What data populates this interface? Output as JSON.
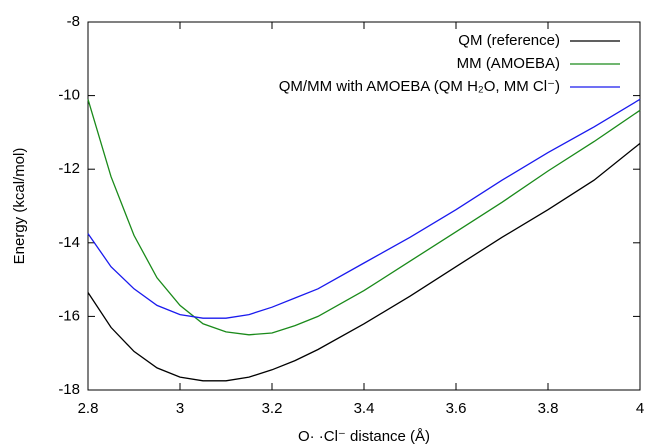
{
  "chart_data": {
    "type": "line",
    "xlabel": "O· ·Cl⁻ distance (Å)",
    "ylabel": "Energy (kcal/mol)",
    "x": [
      2.8,
      2.85,
      2.9,
      2.95,
      3.0,
      3.05,
      3.1,
      3.15,
      3.2,
      3.25,
      3.3,
      3.4,
      3.5,
      3.6,
      3.7,
      3.8,
      3.9,
      4.0
    ],
    "series": [
      {
        "name": "QM (reference)",
        "color": "#000000",
        "values": [
          -15.35,
          -16.3,
          -16.95,
          -17.4,
          -17.65,
          -17.75,
          -17.75,
          -17.65,
          -17.45,
          -17.2,
          -16.9,
          -16.2,
          -15.45,
          -14.65,
          -13.85,
          -13.1,
          -12.3,
          -11.3
        ]
      },
      {
        "name": "MM (AMOEBA)",
        "color": "#1a8a1a",
        "values": [
          -10.1,
          -12.2,
          -13.8,
          -14.95,
          -15.7,
          -16.2,
          -16.42,
          -16.5,
          -16.45,
          -16.25,
          -16.0,
          -15.3,
          -14.5,
          -13.7,
          -12.9,
          -12.05,
          -11.25,
          -10.4
        ]
      },
      {
        "name": "QM/MM with AMOEBA (QM H₂O, MM Cl⁻)",
        "color": "#1a1aee",
        "values": [
          -13.75,
          -14.65,
          -15.25,
          -15.7,
          -15.95,
          -16.05,
          -16.05,
          -15.95,
          -15.75,
          -15.5,
          -15.25,
          -14.55,
          -13.85,
          -13.1,
          -12.3,
          -11.55,
          -10.85,
          -10.1
        ]
      }
    ],
    "xlim": [
      2.8,
      4
    ],
    "xticks": [
      2.8,
      3,
      3.2,
      3.4,
      3.6,
      3.8,
      4
    ],
    "ylim": [
      -18,
      -8
    ],
    "yticks": [
      -18,
      -16,
      -14,
      -12,
      -10,
      -8
    ],
    "legend": "upper right"
  }
}
